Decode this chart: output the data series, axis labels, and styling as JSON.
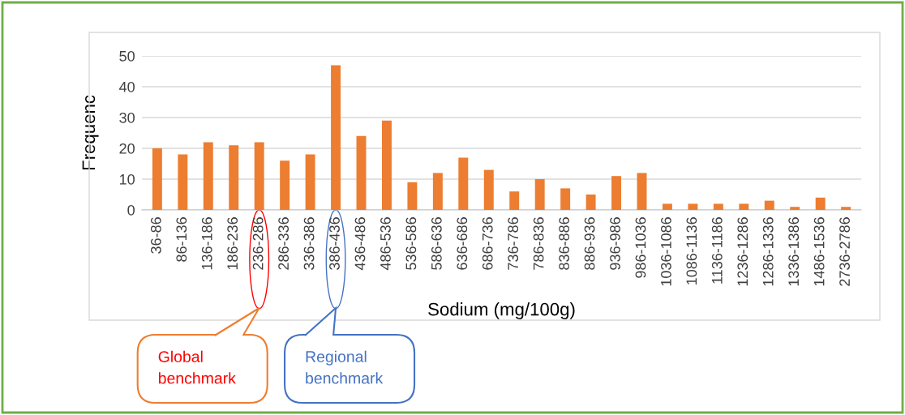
{
  "chart_data": {
    "type": "bar",
    "xlabel": "Sodium (mg/100g)",
    "ylabel": "Frequenc",
    "categories": [
      "36-86",
      "86-136",
      "136-186",
      "186-236",
      "236-286",
      "286-336",
      "336-386",
      "386-436",
      "436-486",
      "486-536",
      "536-586",
      "586-636",
      "636-686",
      "686-736",
      "736-786",
      "786-836",
      "836-886",
      "886-936",
      "936-986",
      "986-1036",
      "1036-1086",
      "1086-1136",
      "1136-1186",
      "1236-1286",
      "1286-1336",
      "1336-1386",
      "1486-1536",
      "2736-2786"
    ],
    "values": [
      20,
      18,
      22,
      21,
      22,
      16,
      18,
      47,
      24,
      29,
      9,
      12,
      17,
      13,
      6,
      10,
      7,
      5,
      11,
      12,
      2,
      2,
      2,
      2,
      3,
      1,
      4,
      1
    ],
    "color": "#ed7d31",
    "ylim": [
      0,
      50
    ],
    "yticks": [
      0,
      10,
      20,
      30,
      40,
      50
    ],
    "grid": "y",
    "legend": false,
    "annotations": [
      "Global\nbenchmark",
      "Regional\nbenchmark"
    ]
  }
}
